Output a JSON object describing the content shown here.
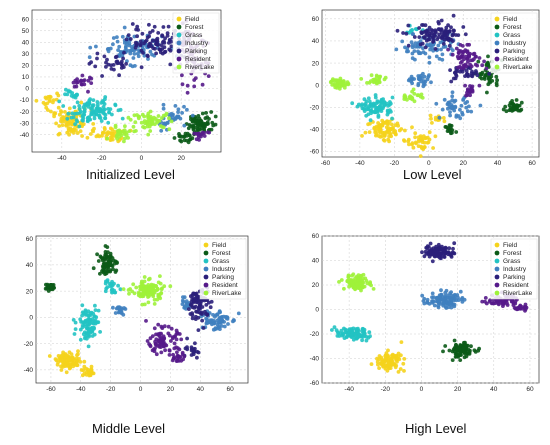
{
  "colors": {
    "Field": "#f5d31c",
    "Forest": "#0b5a17",
    "Grass": "#22c3c3",
    "Industry": "#3f7fbf",
    "Parking": "#2a1f7a",
    "Resident": "#55198a",
    "RiverLake": "#9ef23a"
  },
  "chart_data": [
    {
      "type": "scatter",
      "caption": "Initialized Level",
      "xlim": [
        -55,
        40
      ],
      "ylim": [
        -55,
        68
      ],
      "xticks": [
        -40,
        -20,
        0,
        20
      ],
      "yticks": [
        -40,
        -30,
        -20,
        -10,
        0,
        10,
        20,
        30,
        40,
        50,
        60
      ],
      "grid": true,
      "legend": "top-right",
      "series": [
        {
          "name": "Field",
          "clusters": [
            {
              "x": -35,
              "y": -30,
              "sx": 8,
              "sy": 10,
              "n": 90
            },
            {
              "x": -15,
              "y": -40,
              "sx": 6,
              "sy": 5,
              "n": 40
            },
            {
              "x": -45,
              "y": -10,
              "sx": 4,
              "sy": 8,
              "n": 20
            }
          ]
        },
        {
          "name": "Forest",
          "clusters": [
            {
              "x": 30,
              "y": -30,
              "sx": 6,
              "sy": 8,
              "n": 70
            },
            {
              "x": 20,
              "y": -42,
              "sx": 4,
              "sy": 4,
              "n": 20
            }
          ]
        },
        {
          "name": "Grass",
          "clusters": [
            {
              "x": -25,
              "y": -20,
              "sx": 10,
              "sy": 9,
              "n": 110
            },
            {
              "x": -35,
              "y": -5,
              "sx": 4,
              "sy": 4,
              "n": 15
            }
          ]
        },
        {
          "name": "Industry",
          "clusters": [
            {
              "x": -5,
              "y": 35,
              "sx": 14,
              "sy": 10,
              "n": 90
            },
            {
              "x": 15,
              "y": -25,
              "sx": 7,
              "sy": 8,
              "n": 40
            }
          ]
        },
        {
          "name": "Parking",
          "clusters": [
            {
              "x": 10,
              "y": 40,
              "sx": 14,
              "sy": 12,
              "n": 100
            },
            {
              "x": -15,
              "y": 20,
              "sx": 8,
              "sy": 6,
              "n": 30
            }
          ]
        },
        {
          "name": "Resident",
          "clusters": [
            {
              "x": 25,
              "y": 25,
              "sx": 7,
              "sy": 20,
              "n": 70
            },
            {
              "x": -30,
              "y": 5,
              "sx": 5,
              "sy": 5,
              "n": 20
            },
            {
              "x": 30,
              "y": -40,
              "sx": 4,
              "sy": 4,
              "n": 15
            }
          ]
        },
        {
          "name": "RiverLake",
          "clusters": [
            {
              "x": 5,
              "y": -28,
              "sx": 8,
              "sy": 6,
              "n": 60
            },
            {
              "x": -10,
              "y": -38,
              "sx": 5,
              "sy": 5,
              "n": 25
            }
          ]
        }
      ]
    },
    {
      "type": "scatter",
      "caption": "Low Level",
      "xlim": [
        -62,
        64
      ],
      "ylim": [
        -65,
        68
      ],
      "xticks": [
        -60,
        -40,
        -20,
        0,
        20,
        40,
        60
      ],
      "yticks": [
        -60,
        -40,
        -20,
        0,
        20,
        40,
        60
      ],
      "grid": true,
      "legend": "top-right",
      "series": [
        {
          "name": "Field",
          "clusters": [
            {
              "x": -25,
              "y": -40,
              "sx": 9,
              "sy": 9,
              "n": 80
            },
            {
              "x": -5,
              "y": -50,
              "sx": 7,
              "sy": 7,
              "n": 40
            },
            {
              "x": 5,
              "y": -30,
              "sx": 4,
              "sy": 4,
              "n": 15
            }
          ]
        },
        {
          "name": "Forest",
          "clusters": [
            {
              "x": 50,
              "y": -20,
              "sx": 5,
              "sy": 4,
              "n": 35
            },
            {
              "x": 35,
              "y": 10,
              "sx": 5,
              "sy": 12,
              "n": 45
            },
            {
              "x": 12,
              "y": -40,
              "sx": 3,
              "sy": 4,
              "n": 15
            }
          ]
        },
        {
          "name": "Grass",
          "clusters": [
            {
              "x": -30,
              "y": -20,
              "sx": 8,
              "sy": 7,
              "n": 90
            },
            {
              "x": -10,
              "y": 50,
              "sx": 4,
              "sy": 4,
              "n": 10
            }
          ]
        },
        {
          "name": "Industry",
          "clusters": [
            {
              "x": 0,
              "y": 35,
              "sx": 14,
              "sy": 10,
              "n": 80
            },
            {
              "x": 15,
              "y": -20,
              "sx": 7,
              "sy": 8,
              "n": 45
            },
            {
              "x": -5,
              "y": 5,
              "sx": 8,
              "sy": 5,
              "n": 30
            }
          ]
        },
        {
          "name": "Parking",
          "clusters": [
            {
              "x": 5,
              "y": 45,
              "sx": 13,
              "sy": 9,
              "n": 100
            },
            {
              "x": 20,
              "y": 10,
              "sx": 7,
              "sy": 6,
              "n": 35
            }
          ]
        },
        {
          "name": "Resident",
          "clusters": [
            {
              "x": 22,
              "y": 25,
              "sx": 8,
              "sy": 8,
              "n": 60
            },
            {
              "x": 25,
              "y": -5,
              "sx": 5,
              "sy": 5,
              "n": 20
            }
          ]
        },
        {
          "name": "RiverLake",
          "clusters": [
            {
              "x": -52,
              "y": 2,
              "sx": 4,
              "sy": 4,
              "n": 40
            },
            {
              "x": -30,
              "y": 5,
              "sx": 5,
              "sy": 4,
              "n": 25
            },
            {
              "x": -10,
              "y": -10,
              "sx": 5,
              "sy": 4,
              "n": 25
            }
          ]
        }
      ]
    },
    {
      "type": "scatter",
      "caption": "Middle Level",
      "xlim": [
        -70,
        72
      ],
      "ylim": [
        -50,
        62
      ],
      "xticks": [
        -60,
        -40,
        -20,
        0,
        20,
        40,
        60
      ],
      "yticks": [
        -40,
        -20,
        0,
        20,
        40,
        60
      ],
      "grid": true,
      "legend": "top-right",
      "series": [
        {
          "name": "Field",
          "clusters": [
            {
              "x": -48,
              "y": -33,
              "sx": 7,
              "sy": 5,
              "n": 90
            },
            {
              "x": -35,
              "y": -42,
              "sx": 4,
              "sy": 3,
              "n": 25
            }
          ]
        },
        {
          "name": "Forest",
          "clusters": [
            {
              "x": -60,
              "y": 23,
              "sx": 3,
              "sy": 2,
              "n": 35
            },
            {
              "x": -22,
              "y": 42,
              "sx": 5,
              "sy": 8,
              "n": 70
            }
          ]
        },
        {
          "name": "Grass",
          "clusters": [
            {
              "x": -35,
              "y": -5,
              "sx": 6,
              "sy": 10,
              "n": 90
            },
            {
              "x": -20,
              "y": 25,
              "sx": 4,
              "sy": 5,
              "n": 25
            }
          ]
        },
        {
          "name": "Industry",
          "clusters": [
            {
              "x": 50,
              "y": -2,
              "sx": 8,
              "sy": 7,
              "n": 70
            },
            {
              "x": -15,
              "y": 5,
              "sx": 4,
              "sy": 4,
              "n": 20
            },
            {
              "x": 30,
              "y": 10,
              "sx": 4,
              "sy": 4,
              "n": 20
            }
          ]
        },
        {
          "name": "Parking",
          "clusters": [
            {
              "x": 40,
              "y": 10,
              "sx": 6,
              "sy": 12,
              "n": 80
            },
            {
              "x": 35,
              "y": -25,
              "sx": 4,
              "sy": 5,
              "n": 20
            }
          ]
        },
        {
          "name": "Resident",
          "clusters": [
            {
              "x": 15,
              "y": -18,
              "sx": 8,
              "sy": 8,
              "n": 85
            },
            {
              "x": 25,
              "y": -30,
              "sx": 4,
              "sy": 4,
              "n": 20
            }
          ]
        },
        {
          "name": "RiverLake",
          "clusters": [
            {
              "x": 5,
              "y": 20,
              "sx": 9,
              "sy": 7,
              "n": 110
            }
          ]
        }
      ]
    },
    {
      "type": "scatter",
      "caption": "High Level",
      "xlim": [
        -55,
        65
      ],
      "ylim": [
        -60,
        60
      ],
      "xticks": [
        -40,
        -20,
        0,
        20,
        40,
        60
      ],
      "yticks": [
        -60,
        -40,
        -20,
        0,
        20,
        40,
        60
      ],
      "grid": true,
      "legend": "top-right",
      "series": [
        {
          "name": "Field",
          "clusters": [
            {
              "x": -18,
              "y": -42,
              "sx": 6,
              "sy": 6,
              "n": 90
            }
          ]
        },
        {
          "name": "Forest",
          "clusters": [
            {
              "x": 22,
              "y": -33,
              "sx": 6,
              "sy": 5,
              "n": 90
            }
          ]
        },
        {
          "name": "Grass",
          "clusters": [
            {
              "x": -38,
              "y": -20,
              "sx": 8,
              "sy": 4,
              "n": 90
            }
          ]
        },
        {
          "name": "Industry",
          "clusters": [
            {
              "x": 12,
              "y": 8,
              "sx": 8,
              "sy": 5,
              "n": 100
            }
          ]
        },
        {
          "name": "Parking",
          "clusters": [
            {
              "x": 10,
              "y": 47,
              "sx": 7,
              "sy": 5,
              "n": 90
            }
          ]
        },
        {
          "name": "Resident",
          "clusters": [
            {
              "x": 45,
              "y": 8,
              "sx": 7,
              "sy": 4,
              "n": 70
            },
            {
              "x": 55,
              "y": 2,
              "sx": 3,
              "sy": 3,
              "n": 20
            }
          ]
        },
        {
          "name": "RiverLake",
          "clusters": [
            {
              "x": -35,
              "y": 22,
              "sx": 6,
              "sy": 5,
              "n": 100
            }
          ]
        }
      ]
    }
  ]
}
